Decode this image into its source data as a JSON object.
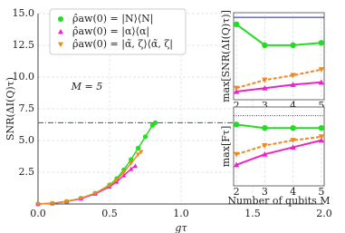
{
  "chart_data": [
    {
      "type": "line",
      "xlabel": "gτ",
      "ylabel": "SNR(ΔI(Q)τ)",
      "xlim": [
        0,
        2
      ],
      "ylim": [
        0,
        15
      ],
      "xticks": [
        {
          "value": 0,
          "label": "0.0"
        },
        0.5,
        {
          "value": 1,
          "label": "1.0"
        },
        1.5,
        {
          "value": 2,
          "label": "2.0"
        }
      ],
      "yticks": [
        2.5,
        {
          "value": 5,
          "label": "5.0"
        },
        7.5,
        {
          "value": 10,
          "label": "10.0"
        },
        12.5,
        {
          "value": 15,
          "label": "15.0"
        }
      ],
      "grid": true,
      "legend": "upper left",
      "annotations": [
        "M = 5"
      ],
      "reference_lines": [
        {
          "value": 6.4,
          "color": "#1a7a1a",
          "style": "dashdot"
        }
      ],
      "series": [
        {
          "name": "ρ̂aw(0) = |N⟩⟨N|",
          "color": "#22dd22",
          "marker": "circle",
          "x": [
            0,
            0.1,
            0.2,
            0.3,
            0.4,
            0.5,
            0.55,
            0.6,
            0.65,
            0.7,
            0.75,
            0.8,
            0.82
          ],
          "values": [
            0,
            0.05,
            0.2,
            0.45,
            0.85,
            1.5,
            2.0,
            2.7,
            3.5,
            4.4,
            5.3,
            6.2,
            6.4
          ]
        },
        {
          "name": "ρ̂aw(0) = |α⟩⟨α|",
          "color": "#ee22cc",
          "marker": "triangle-up",
          "x": [
            0,
            0.1,
            0.2,
            0.3,
            0.4,
            0.5,
            0.55,
            0.6,
            0.65,
            0.68
          ],
          "values": [
            0,
            0.05,
            0.2,
            0.42,
            0.8,
            1.35,
            1.75,
            2.25,
            2.75,
            3.0
          ]
        },
        {
          "name": "ρ̂aw(0) = |α̃, ζ⟩⟨α̃, ζ|",
          "color": "#ee8822",
          "marker": "triangle-down",
          "x": [
            0,
            0.1,
            0.2,
            0.3,
            0.4,
            0.5,
            0.55,
            0.6,
            0.65,
            0.7,
            0.72
          ],
          "values": [
            0,
            0.05,
            0.2,
            0.45,
            0.85,
            1.45,
            1.9,
            2.5,
            3.2,
            3.9,
            4.1
          ]
        }
      ]
    },
    {
      "type": "line",
      "ylabel": "max[SNR(ΔI(Q)τ)]",
      "xlim": [
        1.9,
        5.1
      ],
      "ylim": [
        1.5,
        9
      ],
      "xticks": [
        2,
        3,
        4,
        5
      ],
      "grid": true,
      "reference_lines": [
        {
          "value": 8.6,
          "color": "#2222aa",
          "style": "solid"
        }
      ],
      "series": [
        {
          "color": "#22dd22",
          "marker": "circle",
          "x": [
            2,
            3,
            4,
            5
          ],
          "values": [
            8.0,
            6.2,
            6.2,
            6.4
          ]
        },
        {
          "color": "#ee22cc",
          "marker": "triangle-up",
          "x": [
            2,
            3,
            4,
            5
          ],
          "values": [
            2.2,
            2.5,
            2.8,
            3.0
          ]
        },
        {
          "color": "#ee8822",
          "marker": "triangle-down",
          "dashed": true,
          "x": [
            2,
            3,
            4,
            5
          ],
          "values": [
            2.5,
            3.2,
            3.6,
            4.1
          ]
        }
      ]
    },
    {
      "type": "line",
      "xlabel": "Number of qubits M",
      "ylabel": "max[Fτ]",
      "xlim": [
        1.9,
        5.1
      ],
      "ylim": [
        0.6,
        1.05
      ],
      "xticks": [
        2,
        3,
        4,
        5
      ],
      "grid": true,
      "reference_lines": [
        {
          "value": 1.0,
          "color": "#2222cc",
          "style": "dotted"
        }
      ],
      "series": [
        {
          "color": "#22dd22",
          "marker": "circle",
          "x": [
            2,
            3,
            4,
            5
          ],
          "values": [
            0.95,
            0.93,
            0.93,
            0.93
          ]
        },
        {
          "color": "#ee22cc",
          "marker": "triangle-up",
          "x": [
            2,
            3,
            4,
            5
          ],
          "values": [
            0.72,
            0.78,
            0.82,
            0.86
          ]
        },
        {
          "color": "#ee8822",
          "marker": "triangle-down",
          "dashed": true,
          "x": [
            2,
            3,
            4,
            5
          ],
          "values": [
            0.78,
            0.83,
            0.86,
            0.88
          ]
        }
      ]
    }
  ]
}
